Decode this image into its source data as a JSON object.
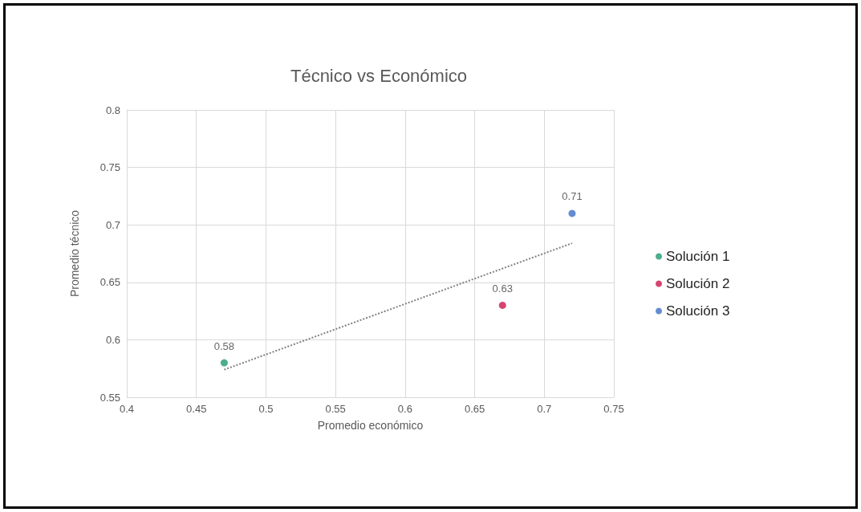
{
  "chart_data": {
    "type": "scatter",
    "title": "Técnico vs Económico",
    "xlabel": "Promedio económico",
    "ylabel": "Promedio técnico",
    "series": [
      {
        "name": "Solución 1",
        "color": "#1e9a6e",
        "x": [
          0.47
        ],
        "values": [
          0.58
        ],
        "value_labels": [
          "0.58"
        ]
      },
      {
        "name": "Solución 2",
        "color": "#c8174a",
        "x": [
          0.67
        ],
        "values": [
          0.63
        ],
        "value_labels": [
          "0.63"
        ]
      },
      {
        "name": "Solución 3",
        "color": "#3f6fc4",
        "x": [
          0.72
        ],
        "values": [
          0.71
        ],
        "value_labels": [
          "0.71"
        ]
      },
      {
        "type": "line",
        "color": "#808080",
        "line_style": "dotted",
        "marker": "none",
        "x": [
          0.47,
          0.72
        ],
        "values": [
          0.574,
          0.684
        ]
      }
    ],
    "xlim": [
      0.4,
      0.75
    ],
    "xticks": [
      0.4,
      0.45,
      0.5,
      0.55,
      0.6,
      0.65,
      0.7,
      0.75
    ],
    "ylim": [
      0.55,
      0.8
    ],
    "yticks": [
      0.55,
      0.6,
      0.65,
      0.7,
      0.75,
      0.8
    ],
    "grid": true,
    "legend": "right",
    "marker": "circle"
  }
}
